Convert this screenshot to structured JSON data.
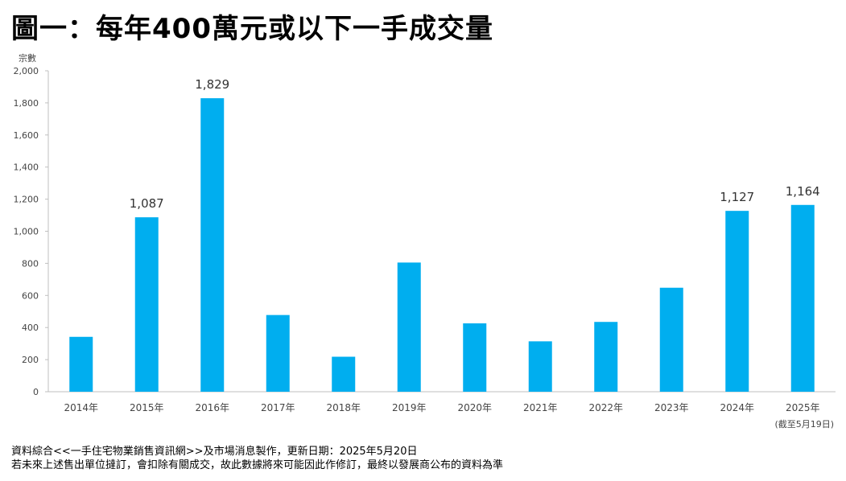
{
  "title": "圖一：每年400萬元或以下一手成交量",
  "chart_data": {
    "type": "bar",
    "ylabel": "宗數",
    "categories": [
      "2014年",
      "2015年",
      "2016年",
      "2017年",
      "2018年",
      "2019年",
      "2020年",
      "2021年",
      "2022年",
      "2023年",
      "2024年",
      "2025年"
    ],
    "values": [
      342,
      1087,
      1829,
      478,
      218,
      805,
      426,
      314,
      435,
      648,
      1127,
      1164
    ],
    "data_labels": [
      "",
      "1,087",
      "1,829",
      "",
      "",
      "",
      "",
      "",
      "",
      "",
      "1,127",
      "1,164"
    ],
    "ylim": [
      0,
      2000
    ],
    "yticks": [
      0,
      200,
      400,
      600,
      800,
      1000,
      1200,
      1400,
      1600,
      1800,
      2000
    ],
    "ytick_labels": [
      "0",
      "200",
      "400",
      "600",
      "800",
      "1,000",
      "1,200",
      "1,400",
      "1,600",
      "1,800",
      "2,000"
    ],
    "bar_color": "#00AEEF",
    "last_category_note": "(截至5月19日)",
    "grid": false
  },
  "footer": {
    "line1": "資料綜合<<一手住宅物業銷售資訊網>>及市場消息製作，更新日期：2025年5月20日",
    "line2": "若未來上述售出單位撻訂，會扣除有關成交，故此數據將來可能因此作修訂，最終以發展商公布的資料為準"
  }
}
